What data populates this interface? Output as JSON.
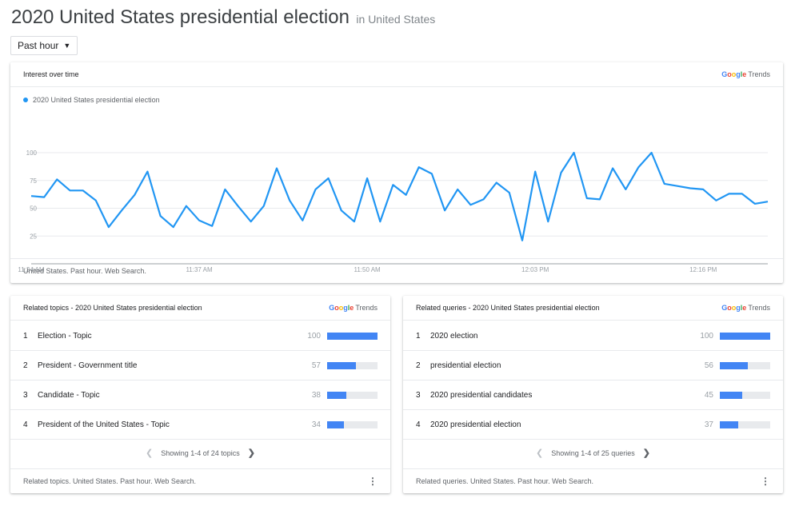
{
  "page": {
    "title": "2020 United States presidential election",
    "geo": "in United States"
  },
  "time_select": {
    "value": "Past hour"
  },
  "logo": {
    "trends": "Trends"
  },
  "interest_card": {
    "title": "Interest over time",
    "footer": "United States. Past hour. Web Search.",
    "line_color": "#2196f3"
  },
  "chart_data": {
    "type": "line",
    "series": [
      {
        "name": "2020 United States presidential election",
        "values": [
          61,
          60,
          76,
          66,
          66,
          57,
          33,
          48,
          62,
          83,
          43,
          33,
          52,
          39,
          34,
          67,
          52,
          38,
          52,
          86,
          57,
          39,
          67,
          77,
          48,
          38,
          77,
          38,
          71,
          62,
          87,
          81,
          48,
          67,
          53,
          58,
          73,
          64,
          21,
          83,
          38,
          82,
          100,
          59,
          58,
          86,
          67,
          87,
          100,
          72,
          70,
          68,
          67,
          57,
          63,
          63,
          54,
          56
        ]
      }
    ],
    "x_tick_labels": [
      "11:24 AM",
      "11:37 AM",
      "11:50 AM",
      "12:03 PM",
      "12:16 PM"
    ],
    "x_tick_indices": [
      0,
      13,
      26,
      39,
      52
    ],
    "y_ticks": [
      100,
      75,
      50,
      25
    ],
    "ylim": [
      0,
      100
    ],
    "grid": true
  },
  "related_topics": {
    "title": "Related topics - 2020 United States presidential election",
    "items": [
      {
        "rank": "1",
        "name": "Election - Topic",
        "value": "100"
      },
      {
        "rank": "2",
        "name": "President - Government title",
        "value": "57"
      },
      {
        "rank": "3",
        "name": "Candidate - Topic",
        "value": "38"
      },
      {
        "rank": "4",
        "name": "President of the United States - Topic",
        "value": "34"
      }
    ],
    "pager": "Showing 1-4 of 24 topics",
    "footer": "Related topics. United States. Past hour. Web Search."
  },
  "related_queries": {
    "title": "Related queries - 2020 United States presidential election",
    "items": [
      {
        "rank": "1",
        "name": "2020 election",
        "value": "100"
      },
      {
        "rank": "2",
        "name": "presidential election",
        "value": "56"
      },
      {
        "rank": "3",
        "name": "2020 presidential candidates",
        "value": "45"
      },
      {
        "rank": "4",
        "name": "2020 presidential election",
        "value": "37"
      }
    ],
    "pager": "Showing 1-4 of 25 queries",
    "footer": "Related queries. United States. Past hour. Web Search."
  },
  "icons": {
    "dropdown": "chevron-down-icon",
    "prev": "chevron-left-icon",
    "next": "chevron-right-icon",
    "more": "more-vert-icon"
  }
}
